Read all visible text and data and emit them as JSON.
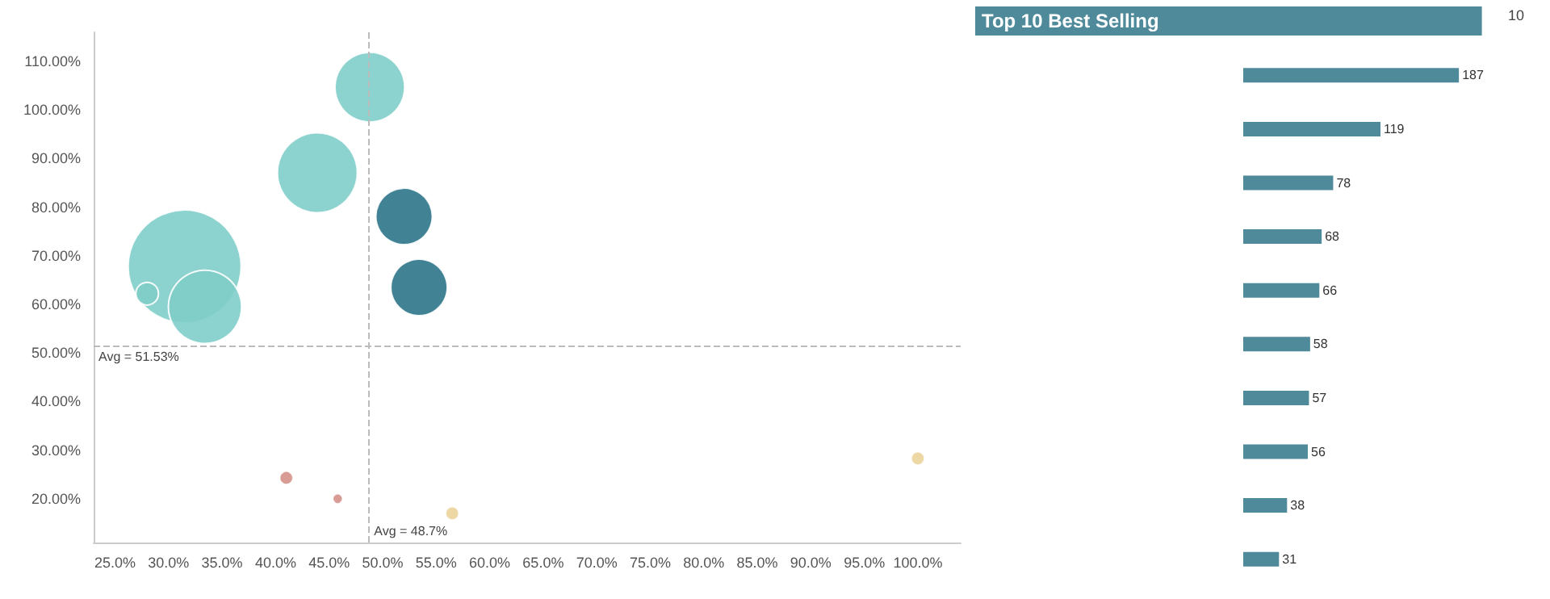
{
  "chart_data": [
    {
      "type": "bubble",
      "x": [
        48.8,
        43.9,
        31.5,
        28.0,
        33.4,
        52.0,
        53.4,
        41.0,
        45.8,
        56.5,
        100.0
      ],
      "values": [
        104.7,
        87.1,
        67.8,
        62.2,
        59.5,
        78.1,
        63.5,
        24.3,
        20.0,
        17.0,
        28.3
      ],
      "sizes": [
        0.38,
        0.5,
        1,
        0.04,
        0.42,
        0.25,
        0.25,
        0.014,
        0.008,
        0.014,
        0.014
      ],
      "colors": [
        "#7fcdc9",
        "#7fcdc9",
        "#7fcdc9",
        "#7fcdc9",
        "#7fcdc9",
        "#2e7489",
        "#2e7489",
        "#d4918a",
        "#d4918a",
        "#ebd39a",
        "#ebd39a"
      ],
      "xlim": [
        23,
        104
      ],
      "ylim": [
        11,
        116
      ],
      "xticks": [
        {
          "value": 25,
          "label": "25.0%"
        },
        {
          "value": 30,
          "label": "30.0%"
        },
        {
          "value": 35,
          "label": "35.0%"
        },
        {
          "value": 40,
          "label": "40.0%"
        },
        {
          "value": 45,
          "label": "45.0%"
        },
        {
          "value": 50,
          "label": "50.0%"
        },
        {
          "value": 55,
          "label": "55.0%"
        },
        {
          "value": 60,
          "label": "60.0%"
        },
        {
          "value": 65,
          "label": "65.0%"
        },
        {
          "value": 70,
          "label": "70.0%"
        },
        {
          "value": 75,
          "label": "75.0%"
        },
        {
          "value": 80,
          "label": "80.0%"
        },
        {
          "value": 85,
          "label": "85.0%"
        },
        {
          "value": 90,
          "label": "90.0%"
        },
        {
          "value": 95,
          "label": "95.0%"
        },
        {
          "value": 100,
          "label": "100.0%"
        }
      ],
      "yticks": [
        {
          "value": 20,
          "label": "20.00%"
        },
        {
          "value": 30,
          "label": "30.00%"
        },
        {
          "value": 40,
          "label": "40.00%"
        },
        {
          "value": 50,
          "label": "50.00%"
        },
        {
          "value": 60,
          "label": "60.00%"
        },
        {
          "value": 70,
          "label": "70.00%"
        },
        {
          "value": 80,
          "label": "80.00%"
        },
        {
          "value": 90,
          "label": "90.00%"
        },
        {
          "value": 100,
          "label": "100.00%"
        },
        {
          "value": 110,
          "label": "110.00%"
        }
      ],
      "ref_lines": [
        {
          "axis": "x",
          "value": 48.7,
          "label": "Avg = 48.7%"
        },
        {
          "axis": "y",
          "value": 51.53,
          "label": "Avg = 51.53%"
        }
      ]
    },
    {
      "type": "bar",
      "title": "Top 10 Best Selling",
      "orientation": "horizontal",
      "categories": [
        null,
        null,
        null,
        null,
        null,
        null,
        null,
        null,
        null,
        null
      ],
      "values": [
        187,
        119,
        78,
        68,
        66,
        58,
        57,
        56,
        38,
        31
      ],
      "color": "#4f8a9b",
      "data_labels": true,
      "annotations": [
        "10"
      ]
    }
  ]
}
